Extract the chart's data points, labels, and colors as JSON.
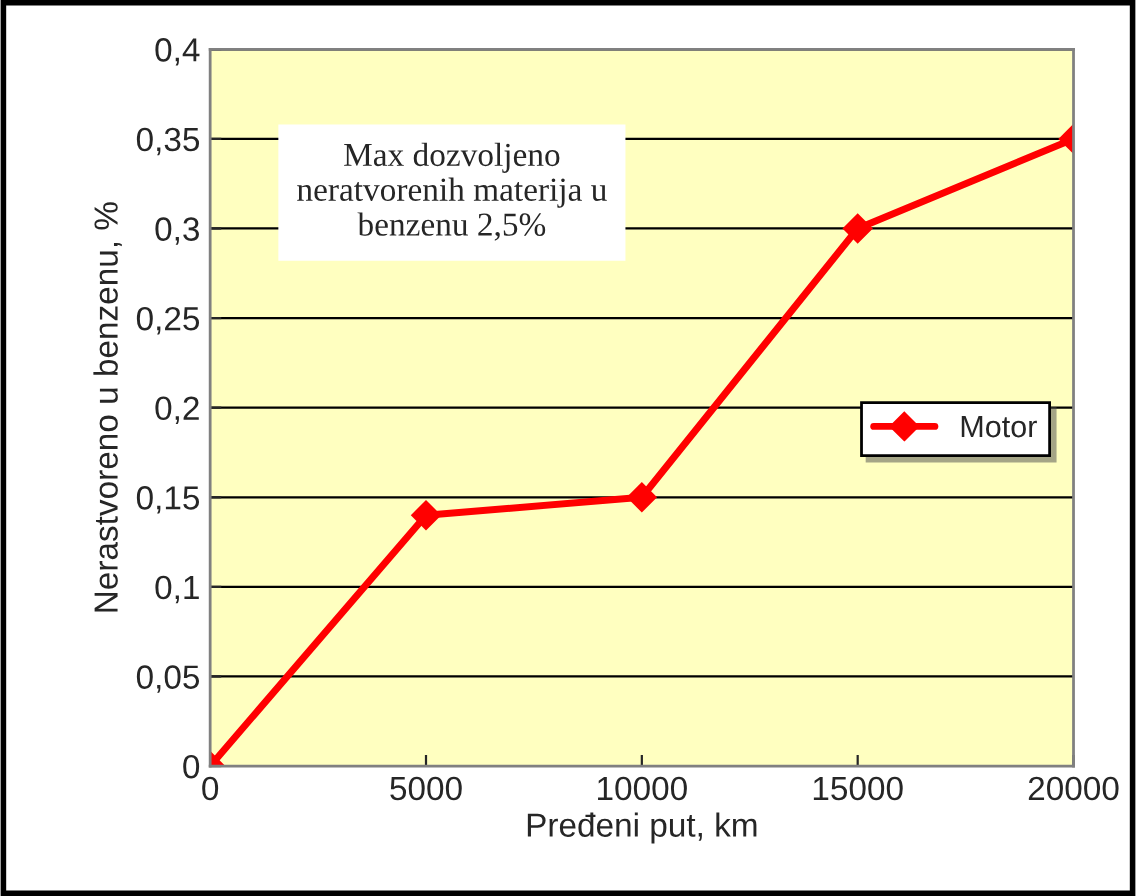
{
  "chart_data": {
    "type": "line",
    "xlabel": "Pređeni put, km",
    "ylabel": "Nerastvoreno u benzenu, %",
    "annotations": [
      "Max dozvoljeno\nneratvorenih materija u\nbenzenu 2,5%"
    ],
    "x": [
      0,
      5000,
      10000,
      15000,
      20000
    ],
    "series": [
      {
        "name": "Motor",
        "color": "#ff0000",
        "values": [
          0,
          0.14,
          0.15,
          0.3,
          0.35
        ]
      }
    ],
    "xlim": [
      0,
      20000
    ],
    "xticks": [
      0,
      5000,
      10000,
      15000,
      20000
    ],
    "ylim": [
      0,
      0.4
    ],
    "yticks": [
      0,
      {
        "value": 0.05,
        "label": "0,05"
      },
      {
        "value": 0.1,
        "label": "0,1"
      },
      {
        "value": 0.15,
        "label": "0,15"
      },
      {
        "value": 0.2,
        "label": "0,2"
      },
      {
        "value": 0.25,
        "label": "0,25"
      },
      {
        "value": 0.3,
        "label": "0,3"
      },
      {
        "value": 0.35,
        "label": "0,35"
      },
      {
        "value": 0.4,
        "label": "0,4"
      }
    ],
    "grid": "y",
    "legend": "center right",
    "marker": "diamond",
    "line_style": "solid"
  }
}
